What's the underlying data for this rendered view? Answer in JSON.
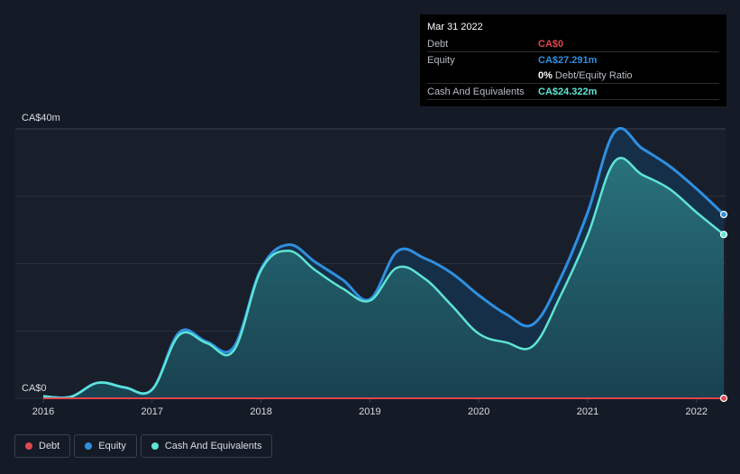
{
  "chart_data": {
    "type": "area",
    "title": "",
    "x_ticks": [
      "2016",
      "2017",
      "2018",
      "2019",
      "2020",
      "2021",
      "2022"
    ],
    "y_ticks": [
      "CA$0",
      "CA$40m"
    ],
    "ylim": [
      0,
      40
    ],
    "xlim": [
      2016.0,
      2022.25
    ],
    "series": [
      {
        "name": "Equity",
        "color": "#2f8fe0",
        "x": [
          2016.0,
          2016.25,
          2016.5,
          2016.75,
          2017.0,
          2017.25,
          2017.5,
          2017.75,
          2018.0,
          2018.25,
          2018.5,
          2018.75,
          2019.0,
          2019.25,
          2019.5,
          2019.75,
          2020.0,
          2020.25,
          2020.5,
          2020.75,
          2021.0,
          2021.25,
          2021.5,
          2021.75,
          2022.0,
          2022.25
        ],
        "values": [
          0.3,
          0.2,
          2.3,
          1.6,
          1.3,
          9.8,
          8.4,
          7.6,
          19.2,
          22.8,
          20.2,
          17.6,
          14.7,
          21.8,
          20.8,
          18.6,
          15.3,
          12.5,
          11.0,
          17.8,
          27.6,
          39.6,
          37.1,
          34.5,
          31.1,
          27.291
        ]
      },
      {
        "name": "Cash And Equivalents",
        "color": "#5ee4d4",
        "x": [
          2016.0,
          2016.25,
          2016.5,
          2016.75,
          2017.0,
          2017.25,
          2017.5,
          2017.75,
          2018.0,
          2018.25,
          2018.5,
          2018.75,
          2019.0,
          2019.25,
          2019.5,
          2019.75,
          2020.0,
          2020.25,
          2020.5,
          2020.75,
          2021.0,
          2021.25,
          2021.5,
          2021.75,
          2022.0,
          2022.25
        ],
        "values": [
          0.3,
          0.2,
          2.3,
          1.6,
          1.3,
          9.4,
          8.2,
          7.1,
          19.0,
          21.9,
          19.0,
          16.3,
          14.5,
          19.4,
          17.8,
          13.8,
          9.6,
          8.3,
          7.8,
          15.2,
          24.2,
          35.2,
          33.2,
          31.1,
          27.6,
          24.322
        ]
      },
      {
        "name": "Debt",
        "color": "#e0474c",
        "x": [
          2016.0,
          2022.25
        ],
        "values": [
          0,
          0
        ]
      }
    ]
  },
  "tooltip": {
    "date": "Mar 31 2022",
    "rows": [
      {
        "label": "Debt",
        "value": "CA$0",
        "color": "#e0474c"
      },
      {
        "label": "Equity",
        "value": "CA$27.291m",
        "color": "#2f8fe0"
      },
      {
        "ratio_value": "0%",
        "ratio_label": "Debt/Equity Ratio"
      },
      {
        "label": "Cash And Equivalents",
        "value": "CA$24.322m",
        "color": "#5ee4d4"
      }
    ]
  },
  "legend": [
    {
      "label": "Debt",
      "color": "#e0474c"
    },
    {
      "label": "Equity",
      "color": "#2f8fe0"
    },
    {
      "label": "Cash And Equivalents",
      "color": "#5ee4d4"
    }
  ]
}
